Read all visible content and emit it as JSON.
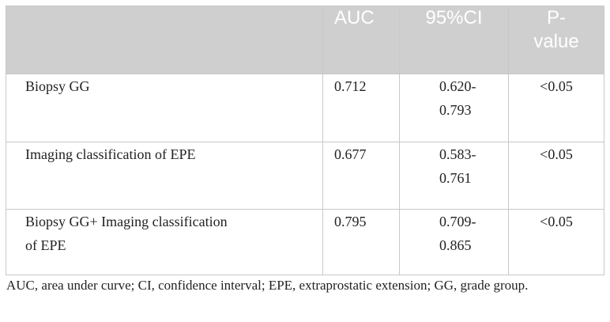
{
  "table": {
    "headers": {
      "label": "",
      "auc": "AUC",
      "ci": "95%CI",
      "p_line1": "P-",
      "p_line2": "value"
    },
    "rows": [
      {
        "label_line1": "Biopsy GG",
        "label_line2": "",
        "auc": "0.712",
        "ci_line1": "0.620-",
        "ci_line2": "0.793",
        "p": "<0.05"
      },
      {
        "label_line1": "Imaging classification of EPE",
        "label_line2": "",
        "auc": "0.677",
        "ci_line1": "0.583-",
        "ci_line2": "0.761",
        "p": "<0.05"
      },
      {
        "label_line1": "Biopsy GG+ Imaging classification",
        "label_line2": "of EPE",
        "auc": "0.795",
        "ci_line1": "0.709-",
        "ci_line2": "0.865",
        "p": "<0.05"
      }
    ]
  },
  "footnote": "AUC, area under curve; CI, confidence interval; EPE, extraprostatic extension; GG, grade group.",
  "colors": {
    "header_background": "#cfcfcf",
    "header_text": "#ffffff",
    "border": "#c8c8c8",
    "body_text": "#222222"
  }
}
